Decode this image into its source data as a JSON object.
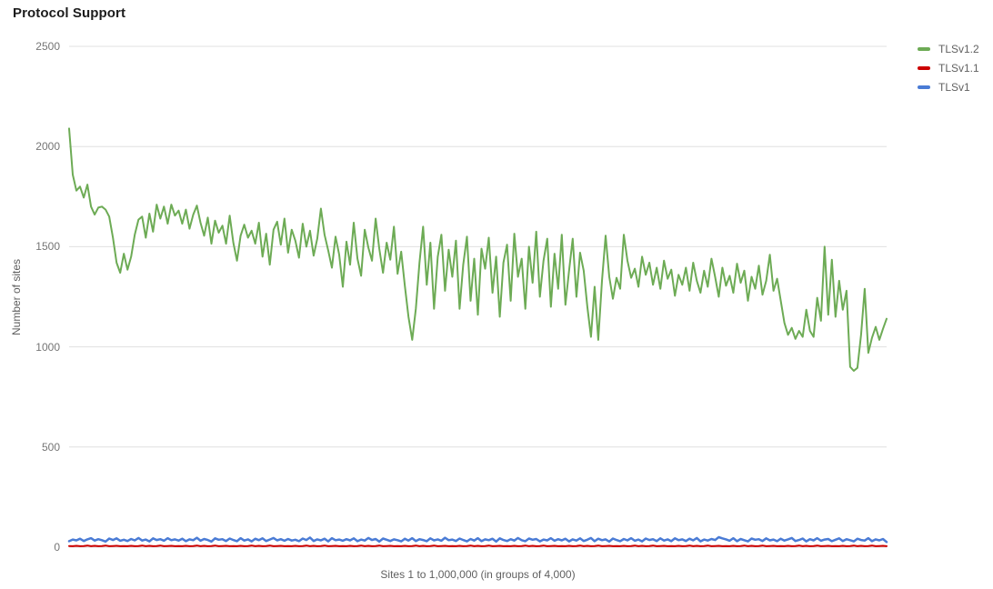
{
  "chart_data": {
    "type": "line",
    "title": "Protocol Support",
    "xlabel": "Sites 1 to 1,000,000 (in groups of 4,000)",
    "ylabel": "Number of sites",
    "ylim": [
      0,
      2500
    ],
    "y_ticks": [
      0,
      500,
      1000,
      1500,
      2000,
      2500
    ],
    "grid": true,
    "legend_position": "top-right",
    "gridline_color": "#e0e0e0",
    "series": [
      {
        "name": "TLSv1.2",
        "color": "#6dab55",
        "values": [
          2090,
          1860,
          1780,
          1800,
          1745,
          1810,
          1700,
          1660,
          1695,
          1700,
          1685,
          1650,
          1545,
          1420,
          1370,
          1465,
          1385,
          1450,
          1560,
          1635,
          1650,
          1545,
          1665,
          1575,
          1710,
          1640,
          1700,
          1615,
          1710,
          1655,
          1680,
          1615,
          1685,
          1590,
          1660,
          1705,
          1620,
          1555,
          1645,
          1515,
          1630,
          1570,
          1605,
          1515,
          1655,
          1520,
          1430,
          1555,
          1610,
          1545,
          1580,
          1515,
          1620,
          1450,
          1565,
          1410,
          1585,
          1625,
          1510,
          1640,
          1470,
          1585,
          1530,
          1445,
          1615,
          1500,
          1580,
          1455,
          1540,
          1690,
          1560,
          1480,
          1395,
          1550,
          1460,
          1300,
          1525,
          1410,
          1620,
          1440,
          1355,
          1585,
          1495,
          1430,
          1640,
          1490,
          1370,
          1520,
          1435,
          1600,
          1365,
          1475,
          1305,
          1150,
          1035,
          1190,
          1420,
          1600,
          1310,
          1520,
          1190,
          1450,
          1560,
          1280,
          1485,
          1350,
          1530,
          1190,
          1410,
          1550,
          1230,
          1440,
          1160,
          1490,
          1390,
          1545,
          1270,
          1450,
          1150,
          1420,
          1510,
          1230,
          1565,
          1350,
          1440,
          1190,
          1500,
          1320,
          1575,
          1250,
          1430,
          1540,
          1200,
          1465,
          1290,
          1560,
          1210,
          1380,
          1540,
          1250,
          1470,
          1380,
          1200,
          1050,
          1300,
          1035,
          1330,
          1555,
          1350,
          1240,
          1345,
          1290,
          1560,
          1430,
          1345,
          1390,
          1300,
          1450,
          1360,
          1420,
          1310,
          1395,
          1290,
          1430,
          1340,
          1385,
          1255,
          1360,
          1310,
          1395,
          1280,
          1420,
          1330,
          1270,
          1380,
          1300,
          1440,
          1350,
          1250,
          1395,
          1305,
          1355,
          1270,
          1415,
          1320,
          1380,
          1230,
          1350,
          1290,
          1405,
          1260,
          1330,
          1460,
          1280,
          1340,
          1230,
          1120,
          1060,
          1095,
          1040,
          1080,
          1050,
          1185,
          1080,
          1050,
          1245,
          1130,
          1500,
          1160,
          1435,
          1150,
          1330,
          1185,
          1280,
          900,
          880,
          895,
          1060,
          1290,
          970,
          1045,
          1100,
          1035,
          1090,
          1140
        ]
      },
      {
        "name": "TLSv1.1",
        "color": "#cc0000",
        "values": [
          6,
          5,
          7,
          5,
          6,
          8,
          5,
          7,
          5,
          6,
          8,
          5,
          6,
          7,
          5,
          6,
          5,
          7,
          5,
          6,
          8,
          5,
          7,
          5,
          6,
          8,
          5,
          6,
          7,
          5,
          6,
          5,
          7,
          5,
          6,
          8,
          5,
          7,
          5,
          6,
          8,
          5,
          6,
          7,
          5,
          6,
          5,
          7,
          5,
          6,
          8,
          5,
          7,
          5,
          6,
          8,
          5,
          6,
          7,
          5,
          6,
          5,
          7,
          5,
          6,
          8,
          5,
          7,
          5,
          6,
          8,
          5,
          6,
          7,
          5,
          6,
          5,
          7,
          5,
          6,
          8,
          5,
          7,
          5,
          6,
          8,
          5,
          6,
          7,
          5,
          6,
          5,
          7,
          5,
          6,
          8,
          5,
          7,
          5,
          6,
          8,
          5,
          6,
          7,
          5,
          6,
          5,
          7,
          5,
          6,
          8,
          5,
          7,
          5,
          6,
          8,
          5,
          6,
          7,
          5,
          6,
          5,
          7,
          5,
          6,
          8,
          5,
          7,
          5,
          6,
          8,
          5,
          6,
          7,
          5,
          6,
          5,
          7,
          5,
          6,
          8,
          5,
          7,
          5,
          6,
          8,
          5,
          6,
          7,
          5,
          6,
          5,
          7,
          5,
          6,
          8,
          5,
          7,
          5,
          6,
          8,
          5,
          6,
          7,
          5,
          6,
          5,
          7,
          5,
          6,
          8,
          5,
          7,
          5,
          6,
          8,
          5,
          6,
          7,
          5,
          6,
          5,
          7,
          5,
          6,
          8,
          5,
          7,
          5,
          6,
          8,
          5,
          6,
          7,
          5,
          6,
          5,
          7,
          5,
          6,
          8,
          5,
          7,
          5,
          6,
          8,
          5,
          6,
          7,
          5,
          6,
          5,
          7,
          5,
          6,
          8,
          5,
          7,
          5,
          6,
          8,
          5,
          6,
          7,
          5
        ]
      },
      {
        "name": "TLSv1",
        "color": "#4a7bd5",
        "values": [
          30,
          38,
          34,
          42,
          31,
          39,
          45,
          33,
          40,
          35,
          28,
          43,
          36,
          44,
          32,
          37,
          31,
          41,
          34,
          46,
          33,
          38,
          29,
          44,
          36,
          40,
          32,
          45,
          35,
          39,
          33,
          42,
          30,
          39,
          35,
          47,
          32,
          41,
          36,
          28,
          44,
          37,
          40,
          31,
          43,
          36,
          30,
          45,
          33,
          39,
          29,
          42,
          35,
          44,
          31,
          38,
          46,
          34,
          40,
          32,
          41,
          33,
          37,
          30,
          43,
          36,
          48,
          31,
          39,
          34,
          42,
          29,
          45,
          35,
          38,
          32,
          40,
          34,
          44,
          30,
          38,
          33,
          46,
          36,
          41,
          28,
          43,
          37,
          31,
          39,
          35,
          29,
          42,
          33,
          45,
          31,
          40,
          36,
          30,
          44,
          34,
          39,
          32,
          47,
          35,
          38,
          31,
          43,
          36,
          29,
          41,
          33,
          45,
          30,
          39,
          35,
          42,
          28,
          44,
          36,
          31,
          40,
          33,
          46,
          35,
          30,
          43,
          37,
          41,
          29,
          38,
          34,
          45,
          32,
          40,
          34,
          42,
          29,
          39,
          33,
          44,
          31,
          37,
          46,
          30,
          42,
          35,
          39,
          28,
          43,
          36,
          30,
          41,
          34,
          45,
          32,
          38,
          29,
          43,
          36,
          40,
          31,
          44,
          33,
          39,
          30,
          44,
          35,
          39,
          31,
          42,
          34,
          46,
          29,
          38,
          33,
          41,
          36,
          50,
          44,
          39,
          32,
          45,
          30,
          41,
          35,
          29,
          43,
          37,
          40,
          31,
          44,
          34,
          38,
          30,
          42,
          33,
          39,
          46,
          31,
          36,
          43,
          29,
          40,
          34,
          45,
          32,
          38,
          41,
          30,
          37,
          44,
          31,
          40,
          35,
          29,
          42,
          36,
          33,
          45,
          30,
          39,
          34,
          41,
          26
        ]
      }
    ]
  }
}
